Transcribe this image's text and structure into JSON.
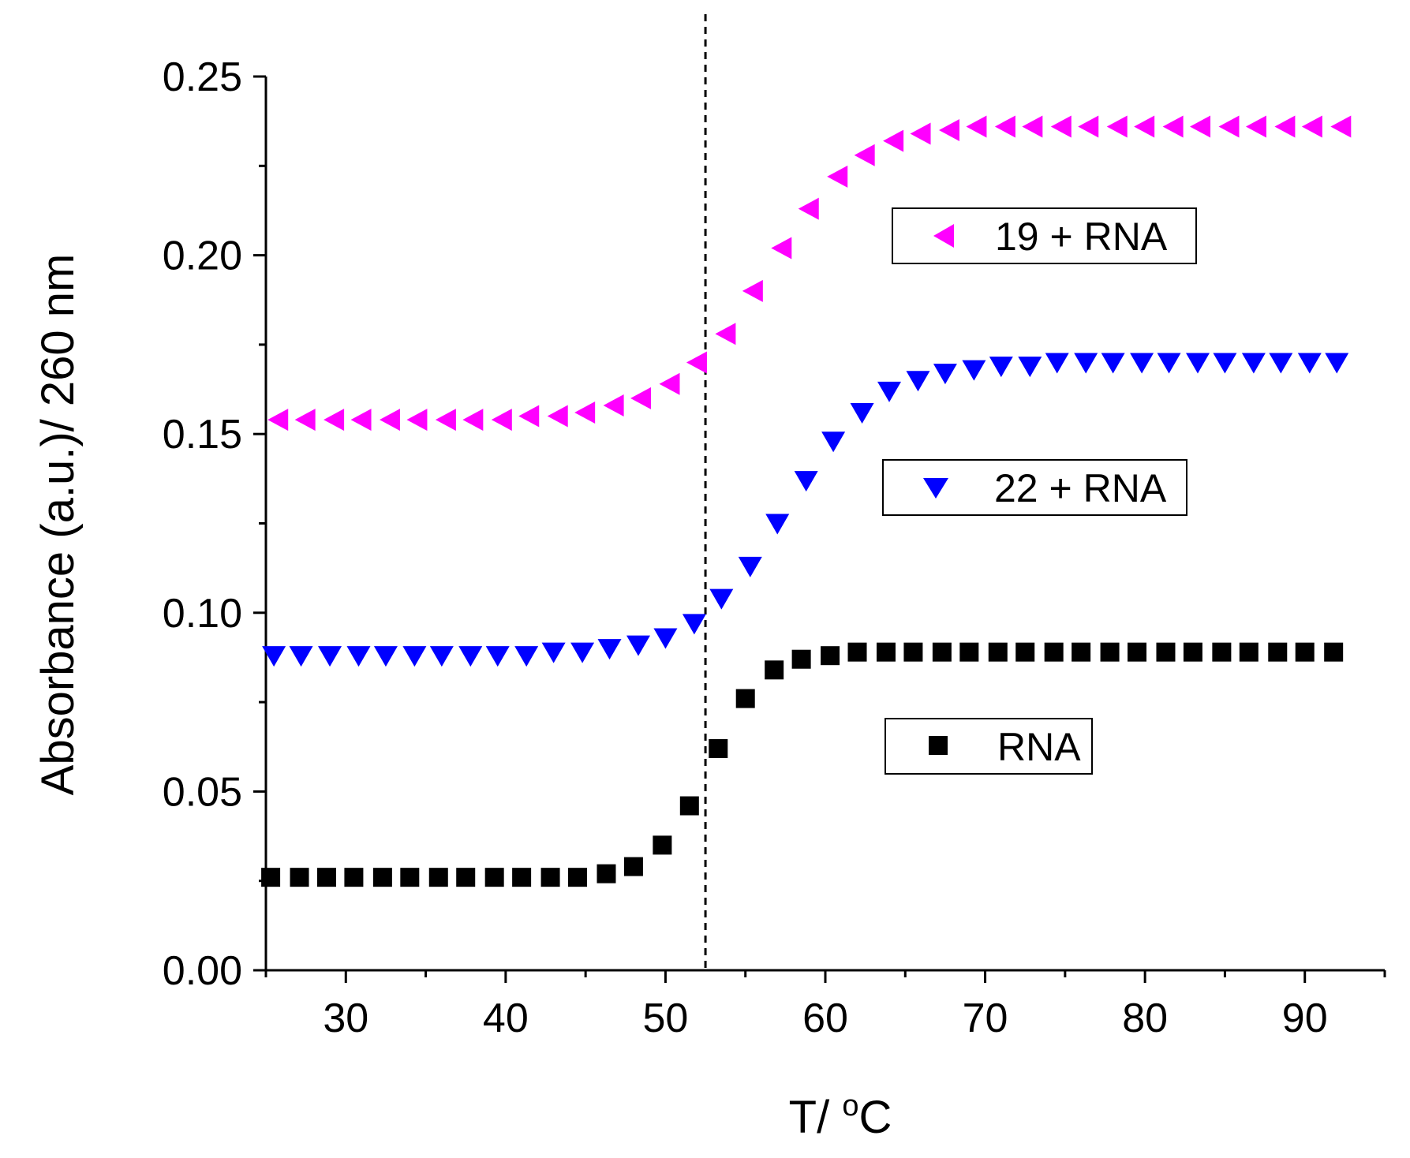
{
  "chart_data": {
    "type": "scatter",
    "title": "",
    "xlabel": "T/ °C",
    "xlabel_main": "T/ ",
    "xlabel_sup": "o",
    "xlabel_unit": "C",
    "ylabel": "Absorbance (a.u.)/ 260 nm",
    "xlim": [
      25,
      95
    ],
    "ylim": [
      0,
      0.25
    ],
    "xticks": [
      30,
      40,
      50,
      60,
      70,
      80,
      90
    ],
    "xtick_labels": [
      "30",
      "40",
      "50",
      "60",
      "70",
      "80",
      "90"
    ],
    "yticks": [
      0,
      0.05,
      0.1,
      0.15,
      0.2,
      0.25
    ],
    "ytick_labels": [
      "0.00",
      "0.05",
      "0.10",
      "0.15",
      "0.20",
      "0.25"
    ],
    "vline_x": 52.5,
    "grid": false,
    "series": [
      {
        "name": "19 + RNA",
        "label": "19 + RNA",
        "marker": "triangle-left",
        "color": "#ff00ff",
        "x": [
          25.8,
          27.5,
          29.3,
          31.0,
          32.8,
          34.5,
          36.3,
          38.0,
          39.8,
          41.5,
          43.3,
          45.0,
          46.8,
          48.5,
          50.3,
          52.0,
          53.8,
          55.5,
          57.3,
          59.0,
          60.8,
          62.5,
          64.3,
          66.0,
          67.8,
          69.5,
          71.3,
          73.0,
          74.8,
          76.5,
          78.3,
          80.0,
          81.8,
          83.5,
          85.3,
          87.0,
          88.8,
          90.5,
          92.3
        ],
        "y": [
          0.154,
          0.154,
          0.154,
          0.154,
          0.154,
          0.154,
          0.154,
          0.154,
          0.154,
          0.155,
          0.155,
          0.156,
          0.158,
          0.16,
          0.164,
          0.17,
          0.178,
          0.19,
          0.202,
          0.213,
          0.222,
          0.228,
          0.232,
          0.234,
          0.235,
          0.236,
          0.236,
          0.236,
          0.236,
          0.236,
          0.236,
          0.236,
          0.236,
          0.236,
          0.236,
          0.236,
          0.236,
          0.236,
          0.236
        ]
      },
      {
        "name": "22 + RNA",
        "label": "22 + RNA",
        "marker": "triangle-down",
        "color": "#0000ff",
        "x": [
          25.5,
          27.2,
          29.0,
          30.8,
          32.5,
          34.3,
          36.0,
          37.8,
          39.5,
          41.3,
          43.0,
          44.8,
          46.5,
          48.3,
          50.0,
          51.8,
          53.5,
          55.3,
          57.0,
          58.8,
          60.5,
          62.3,
          64.0,
          65.8,
          67.5,
          69.3,
          71.0,
          72.8,
          74.5,
          76.3,
          78.0,
          79.8,
          81.5,
          83.3,
          85.0,
          86.8,
          88.5,
          90.3,
          92.0
        ],
        "y": [
          0.088,
          0.088,
          0.088,
          0.088,
          0.088,
          0.088,
          0.088,
          0.088,
          0.088,
          0.088,
          0.089,
          0.089,
          0.09,
          0.091,
          0.093,
          0.097,
          0.104,
          0.113,
          0.125,
          0.137,
          0.148,
          0.156,
          0.162,
          0.165,
          0.167,
          0.168,
          0.169,
          0.169,
          0.17,
          0.17,
          0.17,
          0.17,
          0.17,
          0.17,
          0.17,
          0.17,
          0.17,
          0.17,
          0.17
        ]
      },
      {
        "name": "RNA",
        "label": "RNA",
        "marker": "square",
        "color": "#000000",
        "x": [
          25.3,
          27.1,
          28.8,
          30.5,
          32.3,
          34.0,
          35.8,
          37.5,
          39.3,
          41.0,
          42.8,
          44.5,
          46.3,
          48.0,
          49.8,
          51.5,
          53.3,
          55.0,
          56.8,
          58.5,
          60.3,
          62.0,
          63.8,
          65.5,
          67.3,
          69.0,
          70.8,
          72.5,
          74.3,
          76.0,
          77.8,
          79.5,
          81.3,
          83.0,
          84.8,
          86.5,
          88.3,
          90.0,
          91.8
        ],
        "y": [
          0.026,
          0.026,
          0.026,
          0.026,
          0.026,
          0.026,
          0.026,
          0.026,
          0.026,
          0.026,
          0.026,
          0.026,
          0.027,
          0.029,
          0.035,
          0.046,
          0.062,
          0.076,
          0.084,
          0.087,
          0.088,
          0.089,
          0.089,
          0.089,
          0.089,
          0.089,
          0.089,
          0.089,
          0.089,
          0.089,
          0.089,
          0.089,
          0.089,
          0.089,
          0.089,
          0.089,
          0.089,
          0.089,
          0.089
        ]
      }
    ]
  }
}
